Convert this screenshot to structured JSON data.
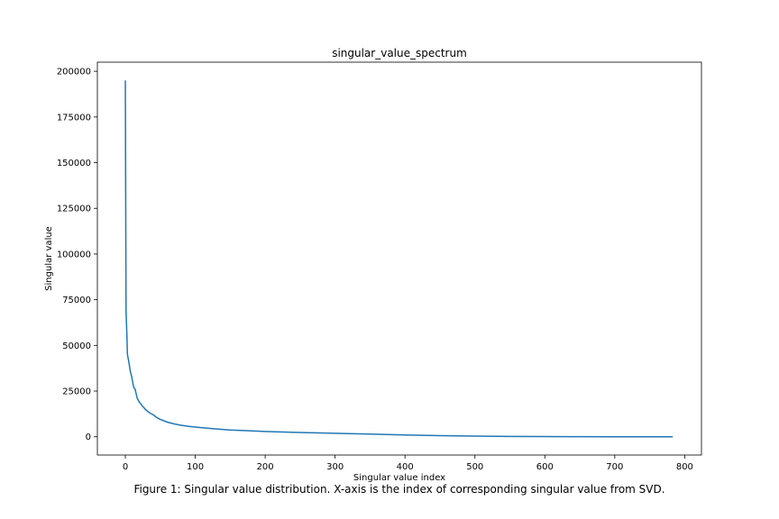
{
  "chart_data": {
    "type": "line",
    "title": "singular_value_spectrum",
    "xlabel": "Singular value index",
    "ylabel": "Singular value",
    "xlim": [
      -40,
      824
    ],
    "ylim": [
      -10000,
      205000
    ],
    "x_ticks": [
      0,
      100,
      200,
      300,
      400,
      500,
      600,
      700,
      800
    ],
    "y_ticks": [
      0,
      25000,
      50000,
      75000,
      100000,
      125000,
      150000,
      175000,
      200000
    ],
    "grid": false,
    "legend": false,
    "line_color": "#1f77b4",
    "series": [
      {
        "x": [
          0,
          1,
          2,
          3,
          5,
          7,
          9,
          10,
          12,
          14,
          17,
          20,
          25,
          30,
          35,
          40,
          45,
          50,
          60,
          70,
          80,
          90,
          100,
          125,
          150,
          175,
          200,
          250,
          300,
          350,
          400,
          450,
          500,
          550,
          600,
          630,
          650,
          700,
          750,
          783
        ],
        "y": [
          195000,
          69000,
          58000,
          45000,
          41000,
          36000,
          33000,
          31000,
          27000,
          26000,
          21000,
          19000,
          16500,
          14500,
          13000,
          12000,
          10500,
          9500,
          8000,
          7000,
          6300,
          5700,
          5300,
          4400,
          3700,
          3300,
          2900,
          2300,
          1900,
          1450,
          1000,
          600,
          350,
          180,
          80,
          30,
          20,
          10,
          5,
          0
        ]
      }
    ]
  },
  "caption": "Figure 1: Singular value distribution. X-axis is the index of corresponding singular value from SVD."
}
